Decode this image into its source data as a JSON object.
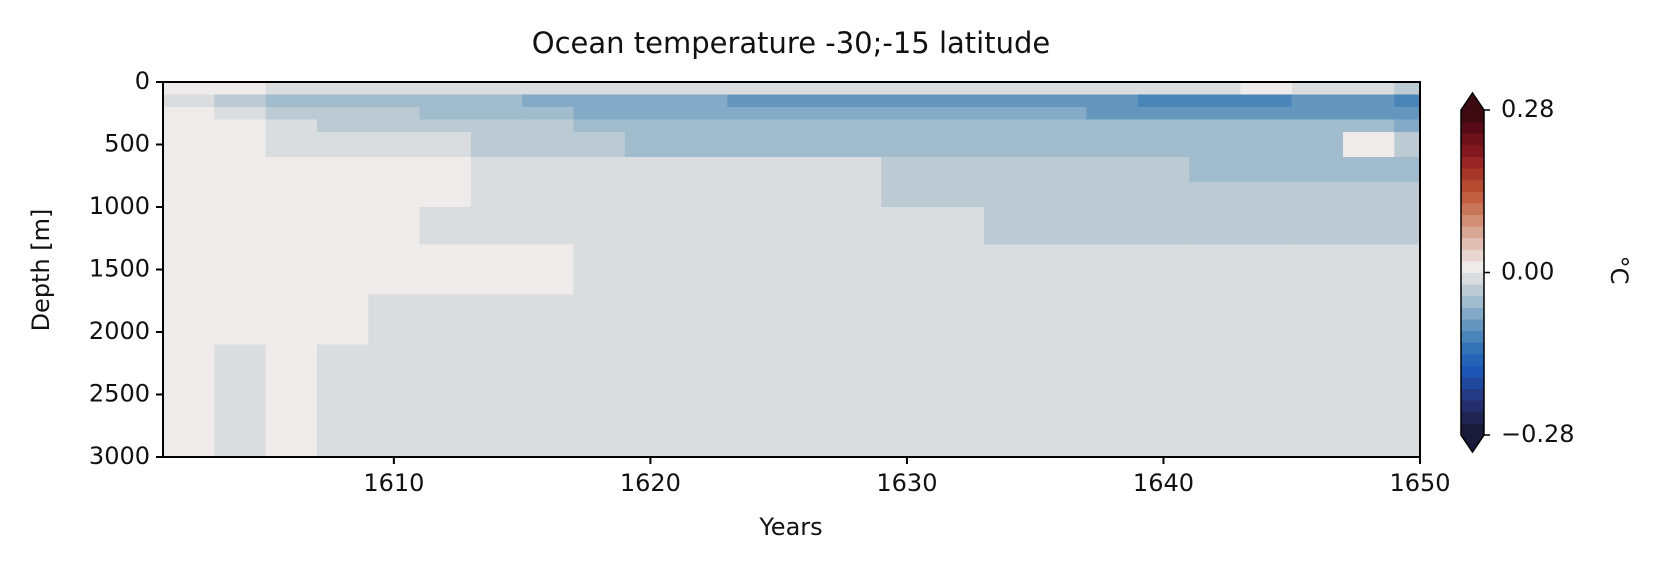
{
  "chart_data": {
    "type": "heatmap",
    "title": "Ocean temperature -30;-15 latitude",
    "xlabel": "Years",
    "ylabel": "Depth [m]",
    "colorbar_label": "°C",
    "x": [
      1601,
      1603,
      1605,
      1607,
      1609,
      1611,
      1613,
      1615,
      1617,
      1619,
      1621,
      1623,
      1625,
      1627,
      1629,
      1631,
      1633,
      1635,
      1637,
      1639,
      1641,
      1643,
      1645,
      1647,
      1649,
      1650
    ],
    "y": [
      0,
      100,
      200,
      300,
      400,
      600,
      800,
      1000,
      1300,
      1700,
      2100,
      3000
    ],
    "xlim": [
      1601,
      1650
    ],
    "xticks": [
      1610,
      1620,
      1630,
      1640,
      1650
    ],
    "ylim": [
      0,
      3000
    ],
    "y_inverted": true,
    "yticks": [
      0,
      500,
      1000,
      1500,
      2000,
      2500,
      3000
    ],
    "clim": [
      -0.28,
      0.28
    ],
    "colorbar_extend": "both",
    "colorbar_ticks": [
      {
        "value": -0.28,
        "label": "−0.28"
      },
      {
        "value": 0,
        "label": "0.00"
      },
      {
        "value": 0.28,
        "label": "0.28"
      }
    ],
    "colorscale": [
      "#1a1a3a",
      "#1f2350",
      "#232e6b",
      "#243a85",
      "#20489e",
      "#1d56b4",
      "#2464b8",
      "#3373b5",
      "#4a85b9",
      "#6597be",
      "#83aac6",
      "#a1bccd",
      "#bccbd3",
      "#d9dde0",
      "#efebea",
      "#ead6d0",
      "#e2bfb4",
      "#d9a694",
      "#d18d75",
      "#c97558",
      "#c05e3f",
      "#b44a2f",
      "#a63627",
      "#962523",
      "#82181f",
      "#6d111b",
      "#560c17",
      "#3c0a10"
    ],
    "values": [
      [
        0.01,
        0.01,
        -0.01,
        -0.02,
        -0.02,
        -0.02,
        -0.01,
        -0.02,
        -0.02,
        -0.02,
        -0.02,
        -0.02,
        -0.02,
        -0.02,
        -0.02,
        -0.02,
        -0.02,
        -0.02,
        -0.02,
        -0.02,
        -0.02,
        0.01,
        -0.02,
        -0.02,
        -0.03
      ],
      [
        -0.01,
        -0.03,
        -0.05,
        -0.05,
        -0.05,
        -0.06,
        -0.06,
        -0.07,
        -0.08,
        -0.08,
        -0.08,
        -0.09,
        -0.09,
        -0.1,
        -0.09,
        -0.09,
        -0.09,
        -0.1,
        -0.1,
        -0.11,
        -0.11,
        -0.11,
        -0.1,
        -0.1,
        -0.11
      ],
      [
        0.01,
        -0.02,
        -0.04,
        -0.04,
        -0.04,
        -0.05,
        -0.05,
        -0.06,
        -0.07,
        -0.08,
        -0.08,
        -0.08,
        -0.07,
        -0.08,
        -0.08,
        -0.08,
        -0.08,
        -0.08,
        -0.09,
        -0.09,
        -0.09,
        -0.09,
        -0.09,
        -0.09,
        -0.1
      ],
      [
        0.01,
        0.01,
        -0.02,
        -0.03,
        -0.03,
        -0.03,
        -0.04,
        -0.04,
        -0.05,
        -0.05,
        -0.06,
        -0.06,
        -0.06,
        -0.06,
        -0.06,
        -0.06,
        -0.06,
        -0.06,
        -0.06,
        -0.06,
        -0.06,
        -0.06,
        -0.06,
        -0.06,
        -0.07
      ],
      [
        0.01,
        0.01,
        -0.01,
        -0.02,
        -0.02,
        -0.02,
        -0.03,
        -0.03,
        -0.04,
        -0.05,
        -0.05,
        -0.05,
        -0.05,
        -0.05,
        -0.05,
        -0.05,
        -0.05,
        -0.05,
        -0.05,
        -0.05,
        -0.05,
        -0.05,
        -0.05,
        0.01,
        -0.04
      ],
      [
        0.01,
        0.01,
        0.01,
        0.01,
        0.01,
        0.01,
        -0.02,
        -0.02,
        -0.02,
        -0.02,
        -0.02,
        -0.02,
        -0.02,
        -0.02,
        -0.03,
        -0.03,
        -0.04,
        -0.04,
        -0.04,
        -0.04,
        -0.05,
        -0.05,
        -0.05,
        -0.05,
        -0.05
      ],
      [
        0.01,
        0.01,
        0.01,
        0.01,
        0.01,
        0.01,
        -0.02,
        -0.02,
        -0.02,
        -0.02,
        -0.02,
        -0.02,
        -0.02,
        -0.02,
        -0.03,
        -0.04,
        -0.04,
        -0.04,
        -0.04,
        -0.04,
        -0.04,
        -0.04,
        -0.04,
        -0.04,
        -0.04
      ],
      [
        0.01,
        0.01,
        0.01,
        0.01,
        0.01,
        -0.02,
        -0.02,
        -0.02,
        -0.02,
        -0.02,
        -0.02,
        -0.02,
        -0.02,
        -0.02,
        -0.02,
        -0.02,
        -0.03,
        -0.04,
        -0.04,
        -0.04,
        -0.04,
        -0.04,
        -0.04,
        -0.04,
        -0.04
      ],
      [
        0.01,
        0.01,
        0.01,
        0.01,
        0.01,
        0.01,
        0.01,
        0.01,
        -0.02,
        -0.02,
        -0.02,
        -0.02,
        -0.02,
        -0.02,
        -0.02,
        -0.02,
        -0.02,
        -0.02,
        -0.02,
        -0.02,
        -0.02,
        -0.02,
        -0.02,
        -0.02,
        -0.02
      ],
      [
        0.01,
        0.01,
        0.01,
        0.01,
        -0.02,
        -0.02,
        -0.02,
        -0.02,
        -0.02,
        -0.02,
        -0.02,
        -0.02,
        -0.02,
        -0.02,
        -0.02,
        -0.02,
        -0.02,
        -0.02,
        -0.02,
        -0.02,
        -0.02,
        -0.02,
        -0.02,
        -0.02,
        -0.02
      ],
      [
        0.01,
        -0.02,
        0.01,
        -0.02,
        -0.02,
        -0.02,
        -0.02,
        -0.02,
        -0.02,
        -0.02,
        -0.02,
        -0.02,
        -0.02,
        -0.02,
        -0.02,
        -0.02,
        -0.02,
        -0.02,
        -0.02,
        -0.02,
        -0.02,
        -0.02,
        -0.02,
        -0.02,
        -0.02
      ]
    ]
  }
}
